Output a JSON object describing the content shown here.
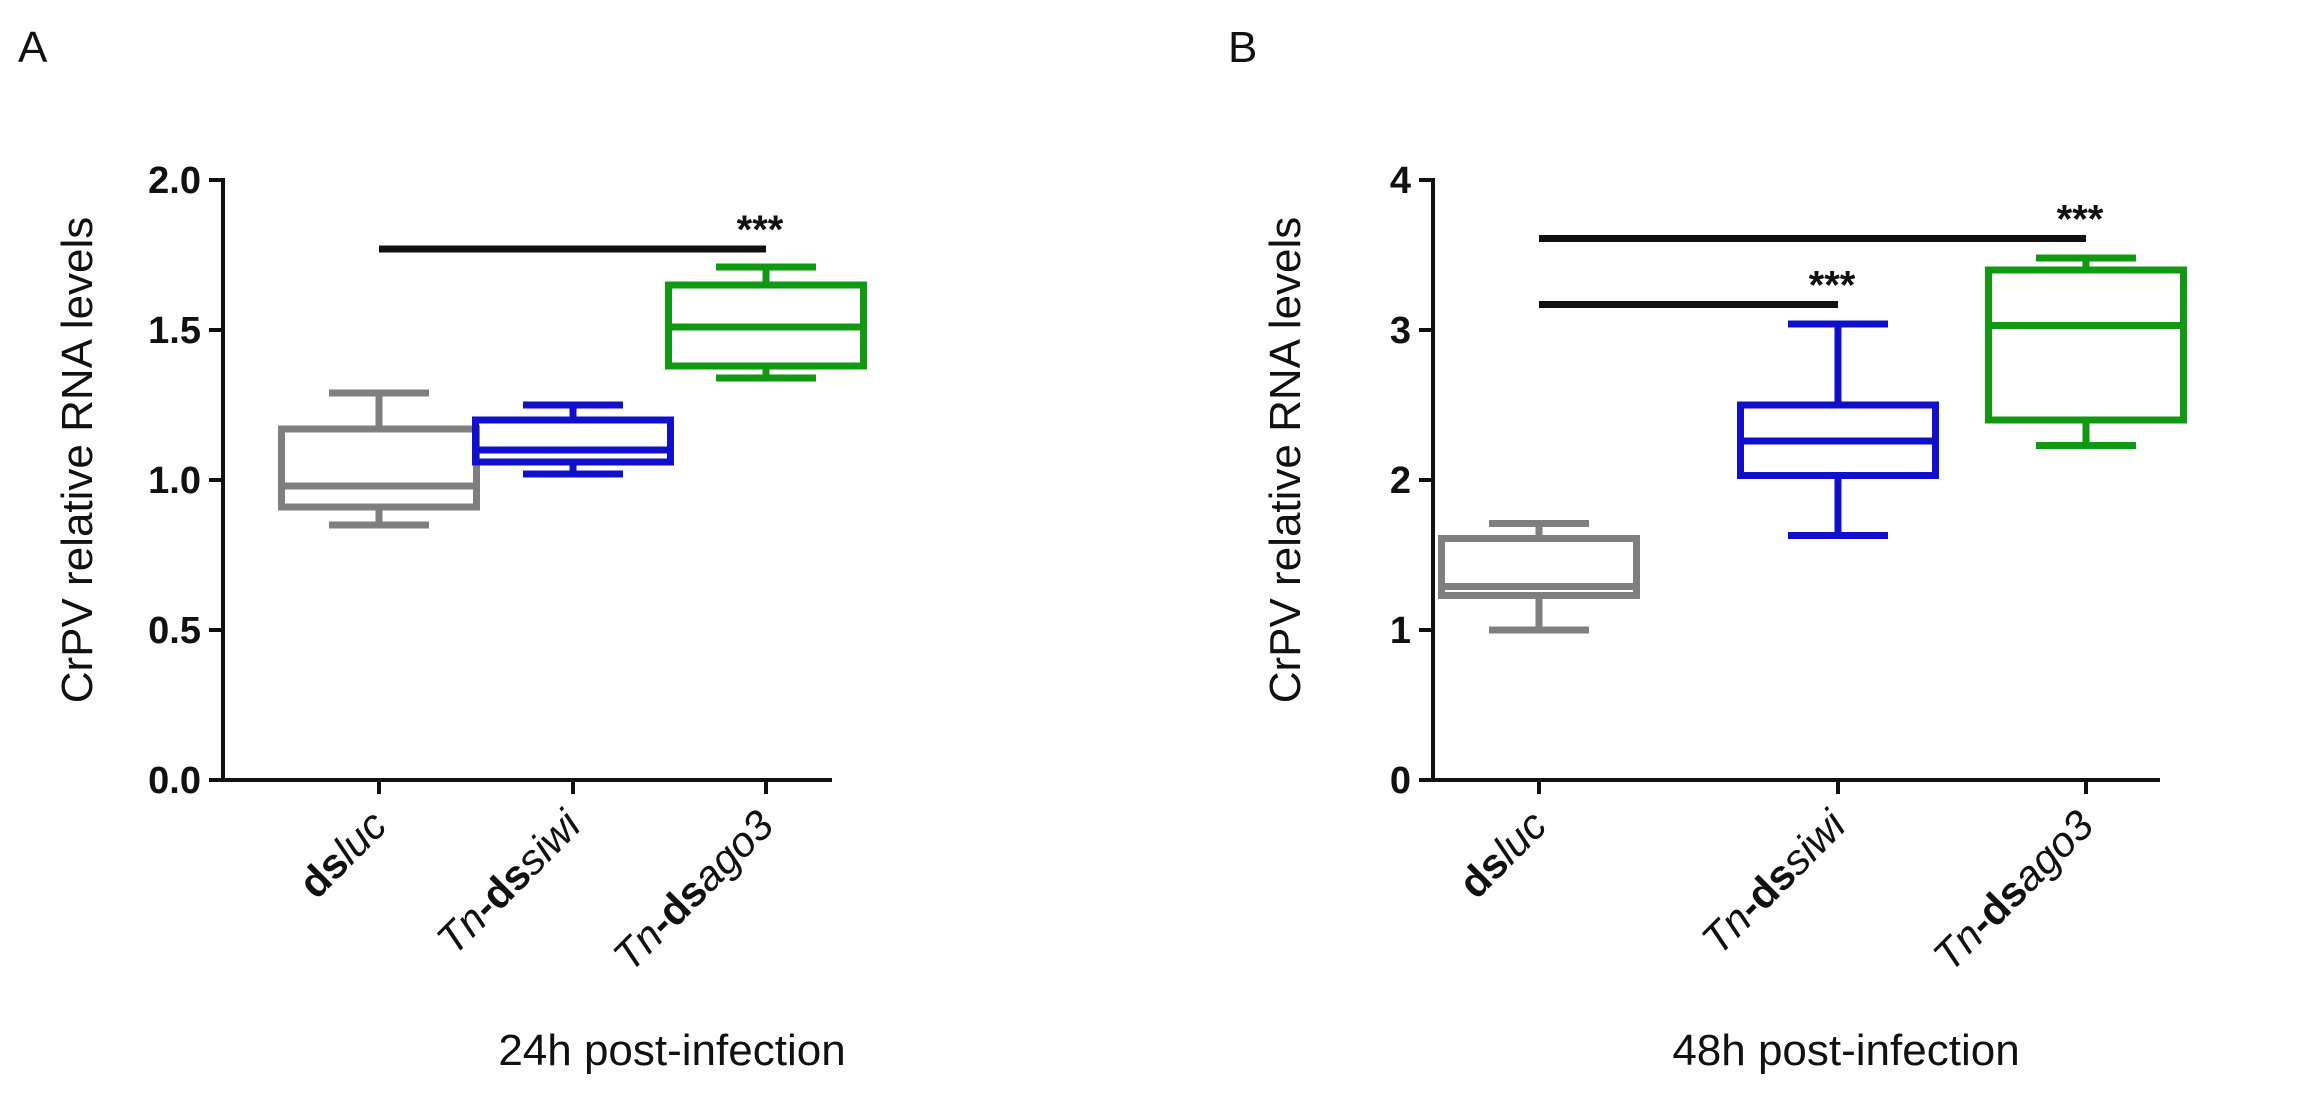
{
  "chart_data": [
    {
      "type": "box",
      "panel_label": "A",
      "ylabel": "CrPV relative RNA levels",
      "xlabel": "24h post-infection",
      "ylim": [
        0,
        2.0
      ],
      "yticks": [
        0.0,
        0.5,
        1.0,
        1.5,
        2.0
      ],
      "ytick_labels": [
        "0.0",
        "0.5",
        "1.0",
        "1.5",
        "2.0"
      ],
      "categories": [
        {
          "parts": [
            {
              "text": "ds",
              "bold": true,
              "italic": false
            },
            {
              "text": "luc",
              "bold": false,
              "italic": true
            }
          ]
        },
        {
          "parts": [
            {
              "text": "Tn",
              "bold": false,
              "italic": true
            },
            {
              "text": "-ds",
              "bold": true,
              "italic": false
            },
            {
              "text": "siwi",
              "bold": false,
              "italic": true
            }
          ]
        },
        {
          "parts": [
            {
              "text": "Tn",
              "bold": false,
              "italic": true
            },
            {
              "text": "-ds",
              "bold": true,
              "italic": false
            },
            {
              "text": "ago3",
              "bold": false,
              "italic": true
            }
          ]
        }
      ],
      "boxes": [
        {
          "color": "#7f7f7f",
          "min": 0.85,
          "q1": 0.91,
          "median": 0.98,
          "q3": 1.17,
          "max": 1.29
        },
        {
          "color": "#1010cc",
          "min": 1.02,
          "q1": 1.06,
          "median": 1.1,
          "q3": 1.2,
          "max": 1.25
        },
        {
          "color": "#119911",
          "min": 1.34,
          "q1": 1.38,
          "median": 1.51,
          "q3": 1.65,
          "max": 1.71
        }
      ],
      "significance": [
        {
          "from": 0,
          "to": 2,
          "y": 1.77,
          "label": "***"
        }
      ]
    },
    {
      "type": "box",
      "panel_label": "B",
      "ylabel": "CrPV relative RNA levels",
      "xlabel": "48h post-infection",
      "ylim": [
        0,
        4
      ],
      "yticks": [
        0,
        1,
        2,
        3,
        4
      ],
      "ytick_labels": [
        "0",
        "1",
        "2",
        "3",
        "4"
      ],
      "categories": [
        {
          "parts": [
            {
              "text": "ds",
              "bold": true,
              "italic": false
            },
            {
              "text": "luc",
              "bold": false,
              "italic": true
            }
          ]
        },
        {
          "parts": [
            {
              "text": "Tn",
              "bold": false,
              "italic": true
            },
            {
              "text": "-ds",
              "bold": true,
              "italic": false
            },
            {
              "text": "siwi",
              "bold": false,
              "italic": true
            }
          ]
        },
        {
          "parts": [
            {
              "text": "Tn",
              "bold": false,
              "italic": true
            },
            {
              "text": "-ds",
              "bold": true,
              "italic": false
            },
            {
              "text": "ago3",
              "bold": false,
              "italic": true
            }
          ]
        }
      ],
      "boxes": [
        {
          "color": "#7f7f7f",
          "min": 1.0,
          "q1": 1.23,
          "median": 1.29,
          "q3": 1.61,
          "max": 1.71
        },
        {
          "color": "#1010cc",
          "min": 1.63,
          "q1": 2.03,
          "median": 2.26,
          "q3": 2.5,
          "max": 3.04
        },
        {
          "color": "#119911",
          "min": 2.23,
          "q1": 2.4,
          "median": 3.03,
          "q3": 3.4,
          "max": 3.48
        }
      ],
      "significance": [
        {
          "from": 0,
          "to": 1,
          "y": 3.17,
          "label": "***"
        },
        {
          "from": 0,
          "to": 2,
          "y": 3.61,
          "label": "***"
        }
      ]
    }
  ]
}
